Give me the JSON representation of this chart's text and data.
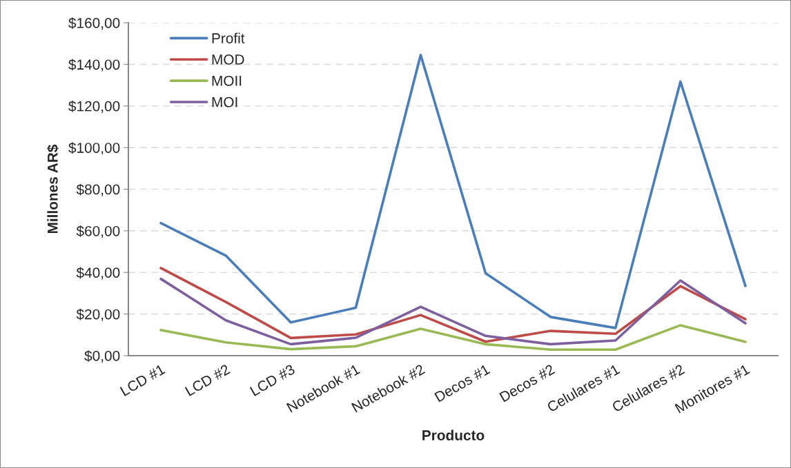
{
  "chart_data": {
    "type": "line",
    "xlabel": "Producto",
    "ylabel": "Millones AR$",
    "categories": [
      "LCD #1",
      "LCD #2",
      "LCD #3",
      "Notebook #1",
      "Notebook #2",
      "Decos #1",
      "Decos #2",
      "Celulares #1",
      "Celulares #2",
      "Monitores #1"
    ],
    "series": [
      {
        "name": "Profit",
        "color": "#4a7ebb",
        "values": [
          63.7,
          48.1,
          16.0,
          23.0,
          144.5,
          39.6,
          18.6,
          13.3,
          131.7,
          33.5
        ]
      },
      {
        "name": "MOD",
        "color": "#be4b48",
        "values": [
          42.1,
          25.8,
          8.5,
          10.2,
          19.5,
          6.7,
          11.9,
          10.5,
          33.4,
          17.5
        ]
      },
      {
        "name": "MOII",
        "color": "#98b954",
        "values": [
          12.3,
          6.4,
          3.1,
          4.5,
          12.9,
          5.5,
          2.9,
          2.9,
          14.6,
          6.6
        ]
      },
      {
        "name": "MOI",
        "color": "#7d5fa0",
        "values": [
          36.9,
          17.0,
          5.5,
          8.6,
          23.5,
          9.5,
          5.5,
          7.3,
          36.1,
          15.6
        ]
      }
    ],
    "ylim": [
      0,
      160
    ],
    "yticks": [
      {
        "value": 0,
        "label": "$0,00"
      },
      {
        "value": 20,
        "label": "$20,00"
      },
      {
        "value": 40,
        "label": "$40,00"
      },
      {
        "value": 60,
        "label": "$60,00"
      },
      {
        "value": 80,
        "label": "$80,00"
      },
      {
        "value": 100,
        "label": "$100,00"
      },
      {
        "value": 120,
        "label": "$120,00"
      },
      {
        "value": 140,
        "label": "$140,00"
      },
      {
        "value": 160,
        "label": "$160,00"
      }
    ],
    "grid": "y",
    "legend": "top left",
    "marker": "none",
    "line_style": "solid"
  }
}
